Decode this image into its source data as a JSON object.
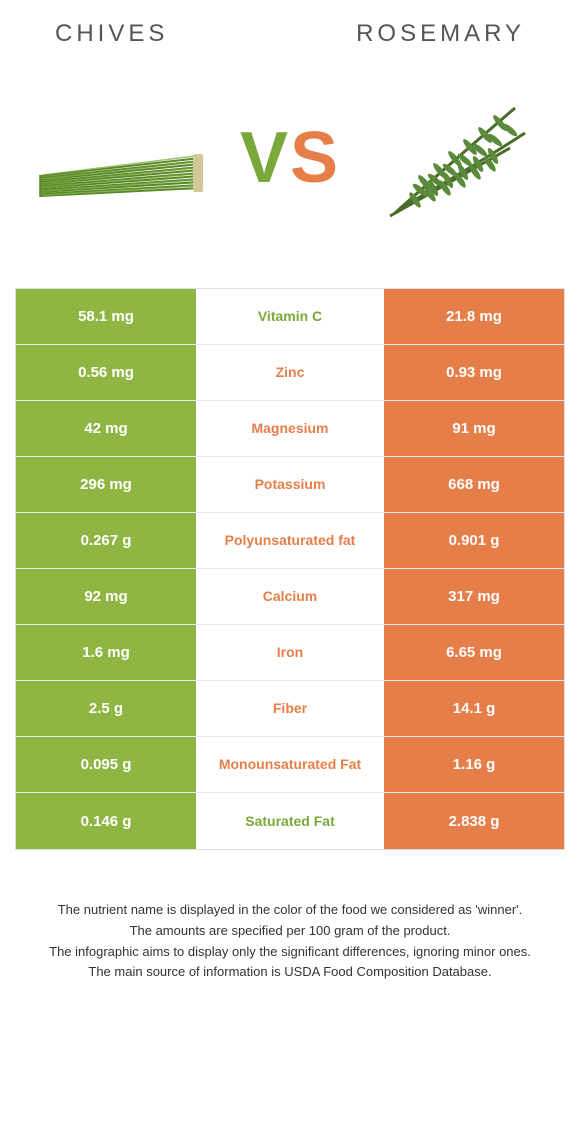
{
  "header": {
    "left": "CHIVES",
    "right": "ROSEMARY"
  },
  "vs": {
    "v": "V",
    "s": "S"
  },
  "colors": {
    "chives": "#8fb542",
    "rosemary": "#e67e4a",
    "chives_text": "#7aa83a",
    "rosemary_text": "#e67e4a"
  },
  "rows": [
    {
      "left": "58.1 mg",
      "label": "Vitamin C",
      "right": "21.8 mg",
      "winner": "chives"
    },
    {
      "left": "0.56 mg",
      "label": "Zinc",
      "right": "0.93 mg",
      "winner": "rosemary"
    },
    {
      "left": "42 mg",
      "label": "Magnesium",
      "right": "91 mg",
      "winner": "rosemary"
    },
    {
      "left": "296 mg",
      "label": "Potassium",
      "right": "668 mg",
      "winner": "rosemary"
    },
    {
      "left": "0.267 g",
      "label": "Polyunsaturated fat",
      "right": "0.901 g",
      "winner": "rosemary"
    },
    {
      "left": "92 mg",
      "label": "Calcium",
      "right": "317 mg",
      "winner": "rosemary"
    },
    {
      "left": "1.6 mg",
      "label": "Iron",
      "right": "6.65 mg",
      "winner": "rosemary"
    },
    {
      "left": "2.5 g",
      "label": "Fiber",
      "right": "14.1 g",
      "winner": "rosemary"
    },
    {
      "left": "0.095 g",
      "label": "Monounsaturated Fat",
      "right": "1.16 g",
      "winner": "rosemary"
    },
    {
      "left": "0.146 g",
      "label": "Saturated Fat",
      "right": "2.838 g",
      "winner": "chives"
    }
  ],
  "footer": {
    "line1": "The nutrient name is displayed in the color of the food we considered as 'winner'.",
    "line2": "The amounts are specified per 100 gram of the product.",
    "line3": "The infographic aims to display only the significant differences, ignoring minor ones.",
    "line4": "The main source of information is USDA Food Composition Database."
  }
}
